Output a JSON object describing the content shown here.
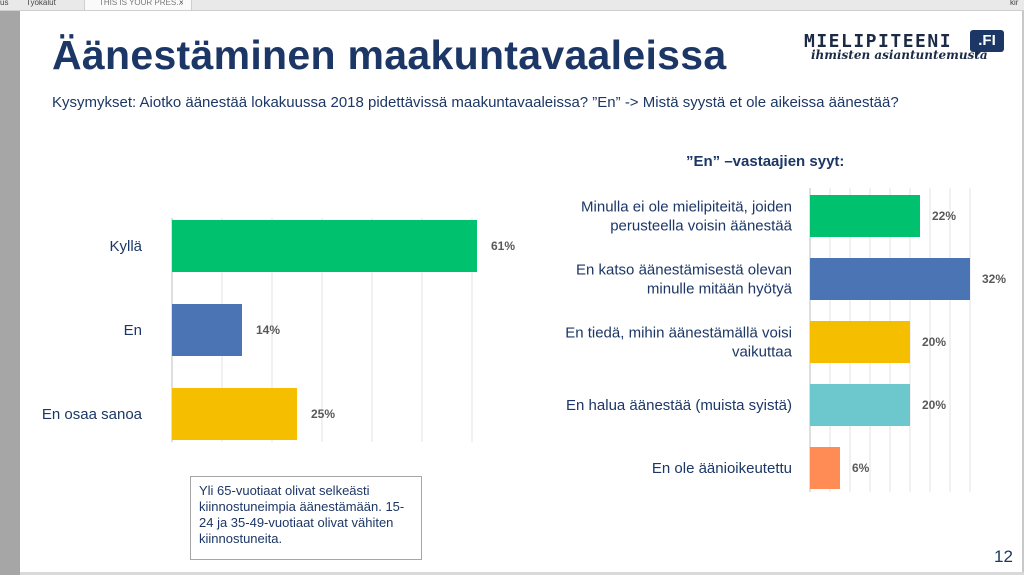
{
  "app": {
    "left_menu_item": "us",
    "menu_item": "Työkalut",
    "tab_label": "THIS IS YOUR PRES...",
    "tab_close": "×",
    "right_menu_item": "kir"
  },
  "slide": {
    "title": "Äänestäminen maakuntavaaleissa",
    "subtitle": "Kysymykset: Aiotko äänestää lokakuussa 2018 pidettävissä maakuntavaaleissa? ”En” -> Mistä syystä et ole aikeissa äänestää?",
    "logo_text": "MIELIPITEENI",
    "logo_badge": ".FI",
    "logo_tagline": "ihmisten asiantuntemusta",
    "right_chart_title": "”En” –vastaajien syyt:",
    "note": "Yli 65-vuotiaat olivat selkeästi kiinnostuneimpia äänestämään. 15-24 ja 35-49-vuotiaat olivat vähiten kiinnostuneita.",
    "page_number": "12"
  },
  "chart_data": [
    {
      "type": "bar",
      "orientation": "horizontal",
      "categories": [
        "Kyllä",
        "En",
        "En osaa sanoa"
      ],
      "values": [
        61,
        14,
        25
      ],
      "value_labels": [
        "61%",
        "14%",
        "25%"
      ],
      "colors": [
        "#00c16e",
        "#4a74b4",
        "#f5bf00"
      ],
      "xlim": [
        0,
        60
      ],
      "grid": true
    },
    {
      "type": "bar",
      "orientation": "horizontal",
      "title": "”En” –vastaajien syyt:",
      "categories": [
        [
          "Minulla ei ole mielipiteitä, joiden",
          "perusteella voisin äänestää"
        ],
        [
          "En katso äänestämisestä olevan",
          "minulle mitään hyötyä"
        ],
        [
          "En tiedä, mihin äänestämällä voisi",
          "vaikuttaa"
        ],
        [
          "En halua äänestää (muista syistä)"
        ],
        [
          "En ole äänioikeutettu"
        ]
      ],
      "values": [
        22,
        32,
        20,
        20,
        6
      ],
      "value_labels": [
        "22%",
        "32%",
        "20%",
        "20%",
        "6%"
      ],
      "colors": [
        "#00c16e",
        "#4a74b4",
        "#f5bf00",
        "#6cc8cc",
        "#ff8c55"
      ],
      "xlim": [
        0,
        32
      ],
      "grid": true
    }
  ]
}
